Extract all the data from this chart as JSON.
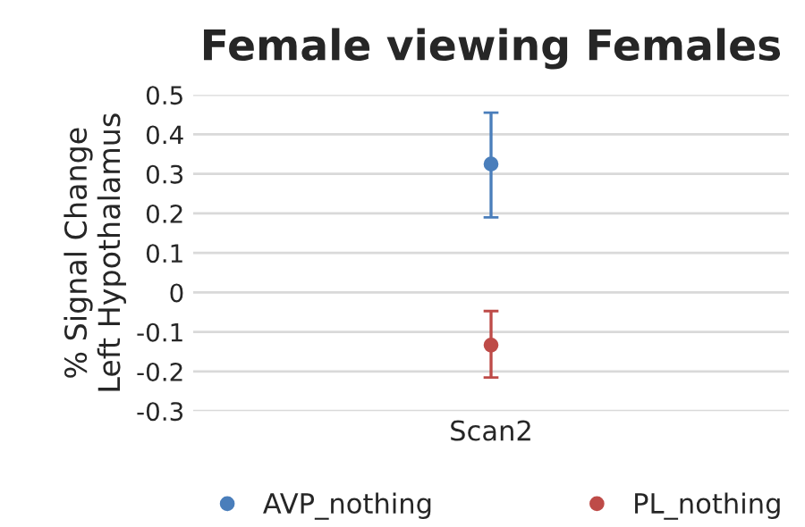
{
  "chart_data": {
    "type": "scatter",
    "title": "Female viewing Females",
    "ylabel": "% Signal Change\nLeft Hypothalamus",
    "categories": [
      "Scan2"
    ],
    "series": [
      {
        "name": "AVP_nothing",
        "color": "#4a7ebb",
        "values": [
          0.325
        ],
        "errors": [
          [
            0.19,
            0.455
          ]
        ]
      },
      {
        "name": "PL_nothing",
        "color": "#be4b48",
        "values": [
          -0.133
        ],
        "errors": [
          [
            -0.215,
            -0.047
          ]
        ]
      }
    ],
    "ylim": [
      -0.3,
      0.5
    ],
    "yticks": [
      0.5,
      0.4,
      0.3,
      0.2,
      0.1,
      0,
      -0.1,
      -0.2,
      -0.3
    ],
    "grid": "y",
    "legend": "bottom",
    "marker": "circle"
  }
}
